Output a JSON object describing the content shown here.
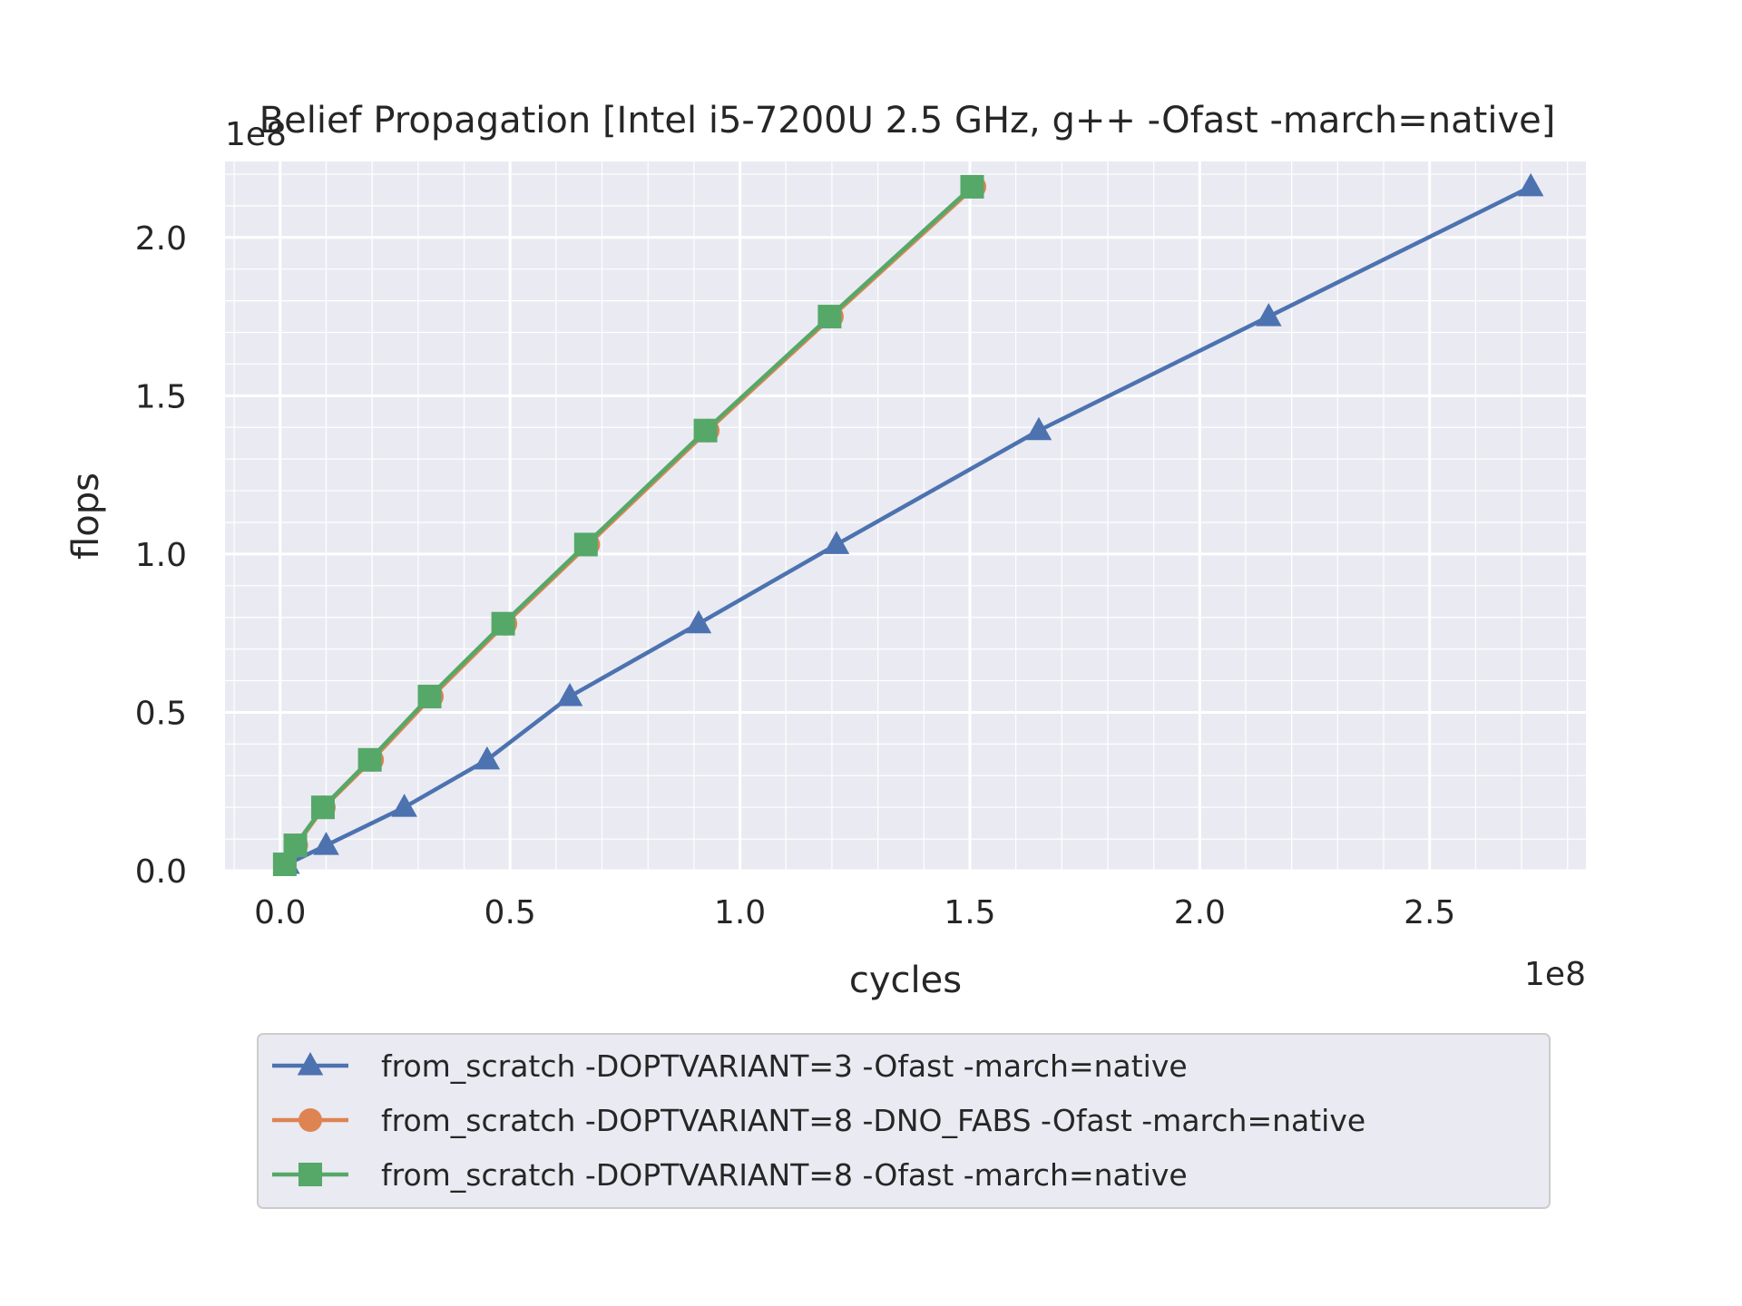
{
  "chart_data": {
    "type": "line",
    "title": "Belief Propagation [Intel i5-7200U 2.5 GHz, g++ -Ofast -march=native]",
    "xlabel": "cycles",
    "ylabel": "flops",
    "x_offset_label": "1e8",
    "y_offset_label": "1e8",
    "xlim": [
      -0.12,
      2.84
    ],
    "ylim": [
      0,
      0.0224
    ],
    "x_ticks": [
      0.0,
      0.5,
      1.0,
      1.5,
      2.0,
      2.5
    ],
    "x_tick_labels": [
      "0.0",
      "0.5",
      "1.0",
      "1.5",
      "2.0",
      "2.5"
    ],
    "y_ticks": [
      0,
      0.005,
      0.01,
      0.015,
      0.02
    ],
    "y_tick_labels": [
      "0.0",
      "0.5",
      "1.0",
      "1.5",
      "2.0"
    ],
    "grid": true,
    "legend_position": "below",
    "series": [
      {
        "name": "from_scratch -DOPTVARIANT=3 -Ofast -march=native",
        "color": "#4c72b0",
        "marker": "triangle",
        "x": [
          0.015,
          0.1,
          0.27,
          0.45,
          0.63,
          0.91,
          1.21,
          1.65,
          2.15,
          2.72
        ],
        "y": [
          0.0002,
          0.0008,
          0.002,
          0.0035,
          0.0055,
          0.0078,
          0.0103,
          0.0139,
          0.0175,
          0.0216
        ]
      },
      {
        "name": "from_scratch -DOPTVARIANT=8 -DNO_FABS -Ofast -march=native",
        "color": "#dd8452",
        "marker": "circle",
        "x": [
          0.01,
          0.035,
          0.095,
          0.2,
          0.33,
          0.49,
          0.67,
          0.93,
          1.2,
          1.51
        ],
        "y": [
          0.0002,
          0.0008,
          0.002,
          0.0035,
          0.0055,
          0.0078,
          0.0103,
          0.0139,
          0.0175,
          0.0216
        ]
      },
      {
        "name": "from_scratch -DOPTVARIANT=8 -Ofast -march=native",
        "color": "#55a868",
        "marker": "square",
        "x": [
          0.01,
          0.033,
          0.093,
          0.195,
          0.325,
          0.485,
          0.665,
          0.925,
          1.195,
          1.505
        ],
        "y": [
          0.0002,
          0.0008,
          0.002,
          0.0035,
          0.0055,
          0.0078,
          0.0103,
          0.0139,
          0.0175,
          0.0216
        ]
      }
    ]
  }
}
